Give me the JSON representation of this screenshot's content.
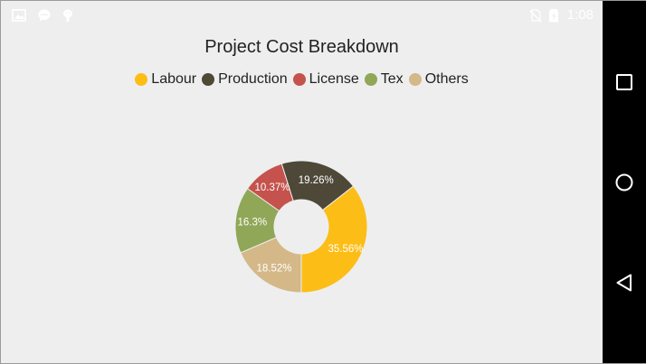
{
  "status_bar": {
    "time": "1:08",
    "left_icons": [
      "image-icon",
      "chat-icon",
      "android-debug-icon"
    ],
    "right_icons": [
      "no-sim-icon",
      "battery-icon"
    ]
  },
  "nav_bar": {
    "buttons": [
      "recents-button",
      "home-button",
      "back-button"
    ]
  },
  "chart_data": {
    "type": "pie",
    "subtype": "doughnut",
    "title": "Project Cost Breakdown",
    "legend_position": "top",
    "series": [
      {
        "name": "Labour",
        "value": 35.56,
        "label": "35.56%",
        "color": "#fcbd16"
      },
      {
        "name": "Production",
        "value": 19.26,
        "label": "19.26%",
        "color": "#4e4839"
      },
      {
        "name": "License",
        "value": 10.37,
        "label": "10.37%",
        "color": "#c5524c"
      },
      {
        "name": "Tex",
        "value": 16.3,
        "label": "16.3%",
        "color": "#8fa757"
      },
      {
        "name": "Others",
        "value": 18.52,
        "label": "18.52%",
        "color": "#d4b888"
      }
    ]
  }
}
